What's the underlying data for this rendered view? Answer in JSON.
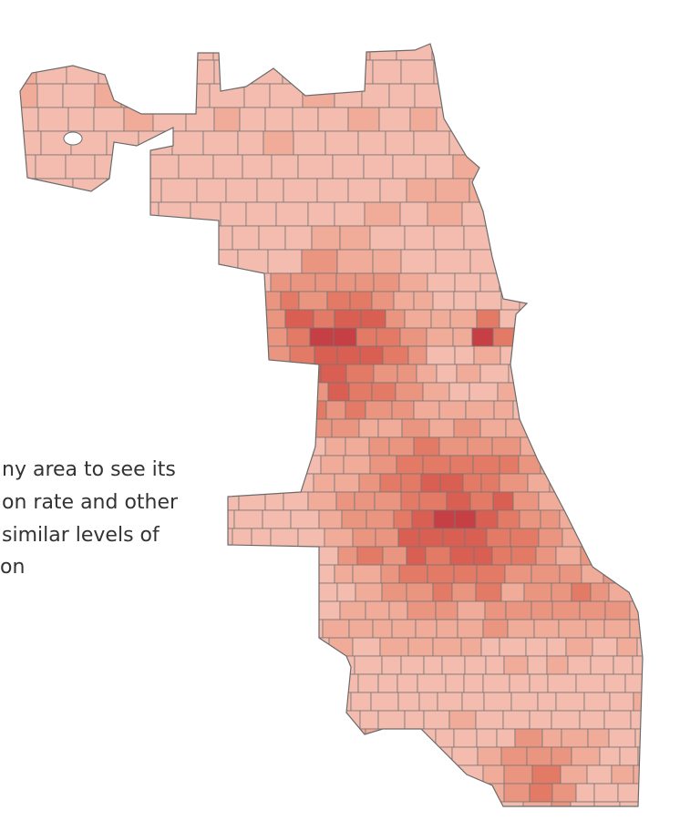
{
  "instructions": {
    "lines": [
      "ny area to see its",
      "on rate and other",
      "similar levels of",
      "on"
    ]
  }
}
